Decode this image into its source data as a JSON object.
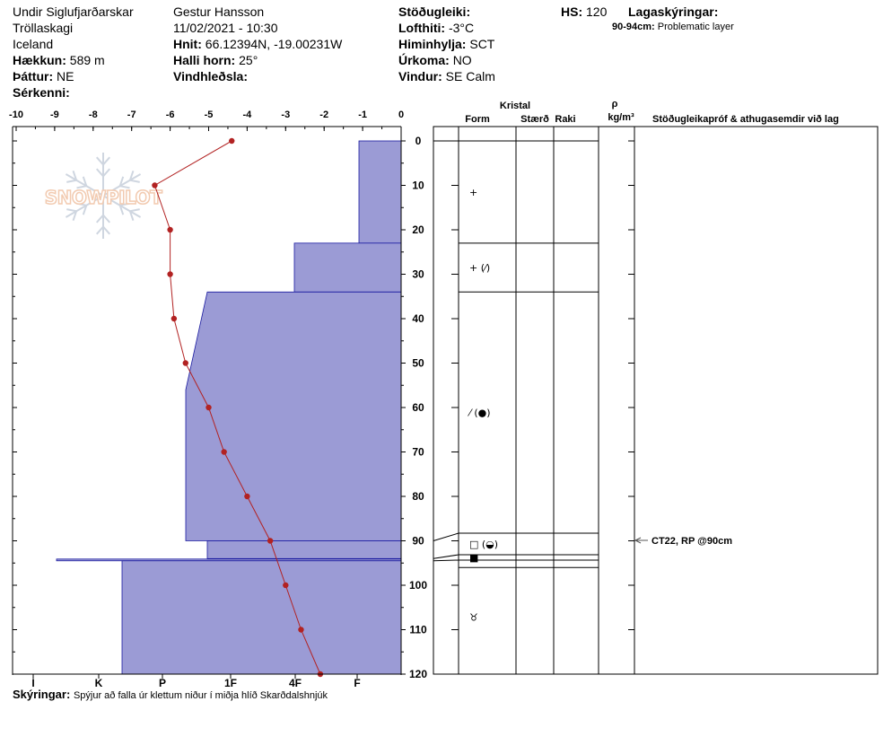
{
  "header": {
    "location": "Undir Siglufjarðarskar",
    "region": "Tröllaskagi",
    "country": "Iceland",
    "elevation_label": "Hækkun:",
    "elevation_value": "589 m",
    "aspect_label": "Þáttur:",
    "aspect_value": "NE",
    "features_label": "Sérkenni:",
    "observer": "Gestur Hansson",
    "datetime": "11/02/2021 - 10:30",
    "coords_label": "Hnit:",
    "coords_value": "66.12394N, -19.00231W",
    "slope_label": "Halli horn:",
    "slope_value": "25°",
    "wind_loading_label": "Vindhleðsla:",
    "stability_label": "Stöðugleiki:",
    "air_temp_label": "Lofthiti:",
    "air_temp_value": "-3°C",
    "sky_label": "Himinhylja:",
    "sky_value": "SCT",
    "precip_label": "Úrkoma:",
    "precip_value": "NO",
    "wind_label": "Vindur:",
    "wind_value": "SE Calm",
    "hs_label": "HS:",
    "hs_value": "120",
    "layer_notes_label": "Lagaskýringar:",
    "layer_note_range": "90-94cm:",
    "layer_note_text": "Problematic layer"
  },
  "watermark": "SNOWPILOT",
  "columns": {
    "crystal": "Kristal",
    "form": "Form",
    "size": "Stærð",
    "moisture": "Raki",
    "rho": "ρ",
    "density_unit": "kg/m³",
    "tests": "Stöðugleikapróf & athugasemdir við lag"
  },
  "test_result": "CT22, RP @90cm",
  "footer": {
    "label": "Skýringar:",
    "text": "Spýjur að falla úr klettum niður í miðja hlíð Skarðdalshnjúk"
  },
  "colors": {
    "hardness_fill": "#9b9bd5",
    "hardness_stroke": "#1a1aa0",
    "temp": "#b22222"
  },
  "chart_data": {
    "type": "area",
    "temp_axis": {
      "ticks": [
        -10,
        -9,
        -8,
        -7,
        -6,
        -5,
        -4,
        -3,
        -2,
        -1,
        0
      ],
      "range": [
        -10,
        0
      ]
    },
    "depth_axis": {
      "ticks": [
        0,
        10,
        20,
        30,
        40,
        50,
        60,
        70,
        80,
        90,
        100,
        110,
        120
      ],
      "range": [
        0,
        120
      ]
    },
    "hardness_axis": {
      "labels": [
        "I",
        "K",
        "P",
        "1F",
        "4F",
        "F"
      ]
    },
    "hardness_profile": [
      {
        "top": 0,
        "bottom": 23,
        "hardness": "F"
      },
      {
        "top": 23,
        "bottom": 34,
        "hardness": "4F"
      },
      {
        "top": 34,
        "bottom": 90,
        "hardness": "1F"
      },
      {
        "top": 90,
        "bottom": 94,
        "hardness": "1F"
      },
      {
        "top": 94,
        "bottom": 94.5,
        "hardness": "K-"
      },
      {
        "top": 94.5,
        "bottom": 120,
        "hardness": "P"
      }
    ],
    "temperature_profile": [
      {
        "depth": 0,
        "temp": -4.4
      },
      {
        "depth": 10,
        "temp": -6.4
      },
      {
        "depth": 20,
        "temp": -6.0
      },
      {
        "depth": 30,
        "temp": -6.0
      },
      {
        "depth": 40,
        "temp": -5.9
      },
      {
        "depth": 50,
        "temp": -5.6
      },
      {
        "depth": 60,
        "temp": -5.0
      },
      {
        "depth": 70,
        "temp": -4.6
      },
      {
        "depth": 80,
        "temp": -4.0
      },
      {
        "depth": 90,
        "temp": -3.4
      },
      {
        "depth": 100,
        "temp": -3.0
      },
      {
        "depth": 110,
        "temp": -2.6
      },
      {
        "depth": 120,
        "temp": -2.1
      }
    ],
    "layers": [
      {
        "top": 0,
        "bottom": 23,
        "form": "+"
      },
      {
        "top": 23,
        "bottom": 34,
        "form": "+ (⁄)"
      },
      {
        "top": 34,
        "bottom": 88,
        "form": "⁄ (●)"
      },
      {
        "top": 88,
        "bottom": 92,
        "form": "□ (◒)"
      },
      {
        "top": 92,
        "bottom": 96,
        "form": "■"
      },
      {
        "top": 96,
        "bottom": 120,
        "form": "♉"
      }
    ]
  }
}
